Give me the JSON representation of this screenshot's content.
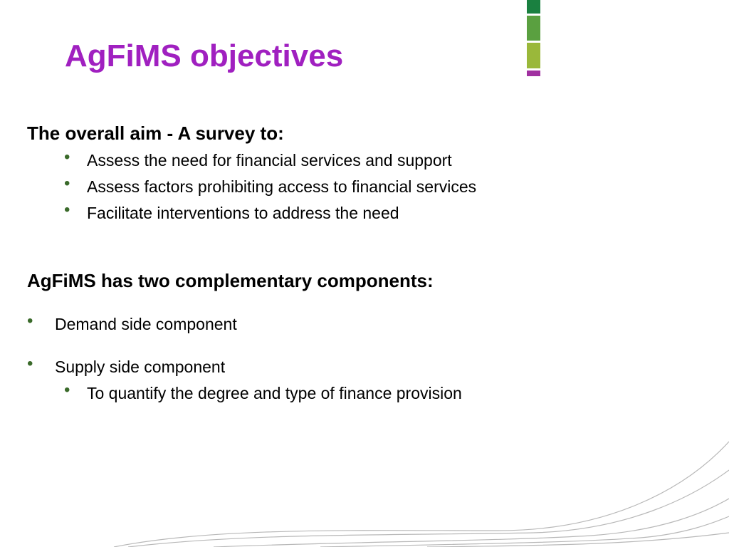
{
  "title": "AgFiMS objectives",
  "section1": {
    "heading": "The overall aim - A survey to:",
    "items": [
      "Assess the need for financial services and support",
      "Assess factors prohibiting access to financial services",
      "Facilitate interventions to address the need"
    ]
  },
  "section2": {
    "heading": "AgFiMS has two complementary components:",
    "items": [
      {
        "label": "Demand side component"
      },
      {
        "label": "Supply side component",
        "sub": [
          "To quantify the degree and type of finance provision"
        ]
      }
    ]
  },
  "decor": {
    "bar_colors": [
      "#1a8040",
      "#5aa040",
      "#9ab83a",
      "#a030a0"
    ],
    "bullet_color": "#3a6a2a",
    "title_color": "#a020c0"
  }
}
